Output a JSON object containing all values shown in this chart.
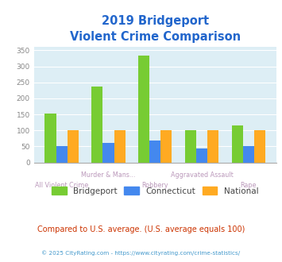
{
  "title_line1": "2019 Bridgeport",
  "title_line2": "Violent Crime Comparison",
  "categories": [
    "All Violent Crime",
    "Murder & Mans...",
    "Robbery",
    "Aggravated Assault",
    "Rape"
  ],
  "bridgeport": [
    153,
    236,
    333,
    100,
    115
  ],
  "connecticut": [
    50,
    60,
    68,
    44,
    51
  ],
  "national": [
    100,
    100,
    100,
    100,
    100
  ],
  "colors": {
    "bridgeport": "#77cc33",
    "connecticut": "#4488ee",
    "national": "#ffaa22"
  },
  "ylim": [
    0,
    360
  ],
  "yticks": [
    0,
    50,
    100,
    150,
    200,
    250,
    300,
    350
  ],
  "background_color": "#ddeef5",
  "title_color": "#2266cc",
  "xlabel_color_top": "#bb99bb",
  "xlabel_color_bot": "#bb99bb",
  "legend_label_color": "#444444",
  "footer_text1": "Compared to U.S. average. (U.S. average equals 100)",
  "footer_text2": "© 2025 CityRating.com - https://www.cityrating.com/crime-statistics/",
  "footer_color1": "#cc3300",
  "footer_color2": "#4499cc"
}
